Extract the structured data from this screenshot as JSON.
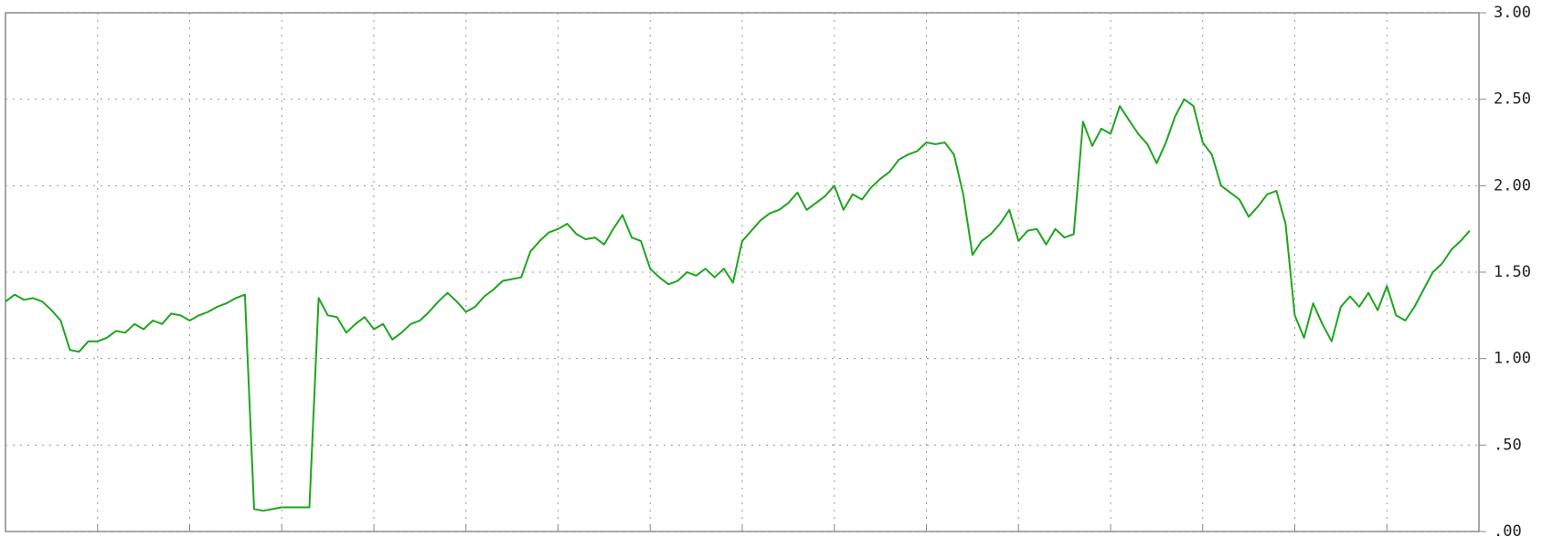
{
  "chart_data": {
    "type": "line",
    "color": "#1fa51f",
    "grid": true,
    "xlim": [
      0,
      160
    ],
    "xticks": [
      10,
      20,
      30,
      40,
      50,
      60,
      70,
      80,
      90,
      100,
      110,
      120,
      130,
      140,
      150
    ],
    "ylim": [
      0,
      3
    ],
    "yticks": [
      {
        "value": 0,
        "label": ".00"
      },
      {
        "value": 0.5,
        "label": ".50"
      },
      {
        "value": 1,
        "label": "1.00"
      },
      {
        "value": 1.5,
        "label": "1.50"
      },
      {
        "value": 2,
        "label": "2.00"
      },
      {
        "value": 2.5,
        "label": "2.50"
      },
      {
        "value": 3,
        "label": "3.00"
      }
    ],
    "values": [
      1.33,
      1.37,
      1.34,
      1.35,
      1.33,
      1.28,
      1.22,
      1.05,
      1.04,
      1.1,
      1.1,
      1.12,
      1.16,
      1.15,
      1.2,
      1.17,
      1.22,
      1.2,
      1.26,
      1.25,
      1.22,
      1.25,
      1.27,
      1.3,
      1.32,
      1.35,
      1.37,
      0.13,
      0.12,
      0.13,
      0.14,
      0.14,
      0.14,
      0.14,
      1.35,
      1.25,
      1.24,
      1.15,
      1.2,
      1.24,
      1.17,
      1.2,
      1.11,
      1.15,
      1.2,
      1.22,
      1.27,
      1.33,
      1.38,
      1.33,
      1.27,
      1.3,
      1.36,
      1.4,
      1.45,
      1.46,
      1.47,
      1.62,
      1.68,
      1.73,
      1.75,
      1.78,
      1.72,
      1.69,
      1.7,
      1.66,
      1.75,
      1.83,
      1.7,
      1.68,
      1.52,
      1.47,
      1.43,
      1.45,
      1.5,
      1.48,
      1.52,
      1.47,
      1.52,
      1.44,
      1.68,
      1.74,
      1.8,
      1.84,
      1.86,
      1.9,
      1.96,
      1.86,
      1.9,
      1.94,
      2.0,
      1.86,
      1.95,
      1.92,
      1.99,
      2.04,
      2.08,
      2.15,
      2.18,
      2.2,
      2.25,
      2.24,
      2.25,
      2.18,
      1.95,
      1.6,
      1.68,
      1.72,
      1.78,
      1.86,
      1.68,
      1.74,
      1.75,
      1.66,
      1.75,
      1.7,
      1.72,
      2.37,
      2.23,
      2.33,
      2.3,
      2.46,
      2.38,
      2.3,
      2.24,
      2.13,
      2.25,
      2.4,
      2.5,
      2.46,
      2.25,
      2.18,
      2.0,
      1.96,
      1.92,
      1.82,
      1.88,
      1.95,
      1.97,
      1.78,
      1.25,
      1.12,
      1.32,
      1.2,
      1.1,
      1.3,
      1.36,
      1.3,
      1.38,
      1.28,
      1.42,
      1.25,
      1.22,
      1.3,
      1.4,
      1.5,
      1.55,
      1.63,
      1.68,
      1.74
    ]
  }
}
